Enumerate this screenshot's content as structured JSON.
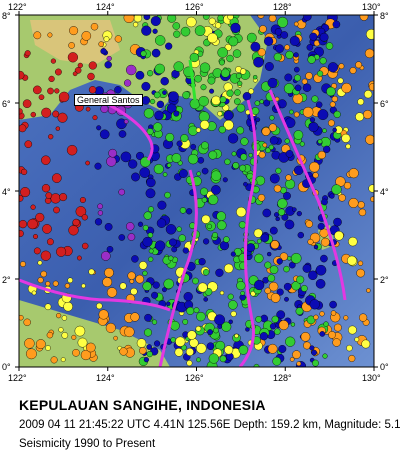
{
  "map": {
    "title": "KEPULAUAN SANGIHE, INDONESIA",
    "event_info": "2009 04 11 21:45:22 UTC 4.41N 125.56E Depth: 159.2 km, Magnitude: 5.1",
    "period": "Seismicity 1990 to Present",
    "city_label": "General Santos",
    "lon_range": [
      122,
      130
    ],
    "lat_range": [
      0,
      8
    ],
    "lon_ticks_top": [
      "122°",
      "124°",
      "126°",
      "128°",
      "130°"
    ],
    "lon_ticks_bottom": [
      "122°",
      "124°",
      "126°",
      "128°",
      "130°"
    ],
    "lat_ticks_left": [
      "8°",
      "6°",
      "4°",
      "2°",
      "0°"
    ],
    "lat_ticks_right": [
      "8°",
      "6°",
      "4°",
      "2°",
      "0°"
    ],
    "colors": {
      "ocean": "#3c5fae",
      "ocean_light": "#6f93d2",
      "land": "#9fc46a",
      "land_high": "#d8c77a",
      "shallow": "#ff9c1e",
      "intermediate": "#33cc33",
      "mid_deep": "#ffff44",
      "deep": "#0b0bb4",
      "very_deep": "#9a2ec7",
      "deepest": "#d21f1f",
      "plate_boundary": "#e238e2",
      "marker_line": "#2fe32f"
    }
  }
}
